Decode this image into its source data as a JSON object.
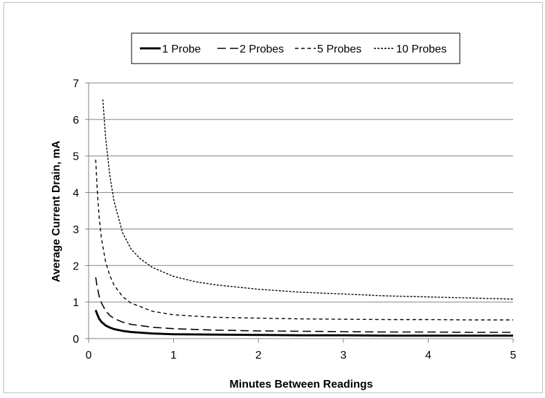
{
  "chart_data": {
    "type": "line",
    "title": "",
    "xlabel": "Minutes Between Readings",
    "ylabel": "Average Current Drain, mA",
    "xlim": [
      0,
      5
    ],
    "ylim": [
      0,
      7
    ],
    "xticks": [
      "0",
      "1",
      "2",
      "3",
      "4",
      "5"
    ],
    "yticks": [
      "0",
      "1",
      "2",
      "3",
      "4",
      "5",
      "6",
      "7"
    ],
    "grid": "horizontal",
    "legend_position": "top",
    "series": [
      {
        "name": "1 Probe",
        "line_style": "solid",
        "x": [
          0.083,
          0.1,
          0.125,
          0.15,
          0.2,
          0.25,
          0.3,
          0.4,
          0.5,
          0.75,
          1,
          1.5,
          2,
          2.5,
          3,
          3.5,
          4,
          4.5,
          5
        ],
        "y": [
          0.78,
          0.67,
          0.54,
          0.46,
          0.36,
          0.3,
          0.26,
          0.21,
          0.18,
          0.14,
          0.12,
          0.11,
          0.1,
          0.09,
          0.09,
          0.08,
          0.08,
          0.08,
          0.08
        ]
      },
      {
        "name": "2 Probes",
        "line_style": "dashed",
        "x": [
          0.083,
          0.1,
          0.125,
          0.15,
          0.2,
          0.25,
          0.3,
          0.4,
          0.5,
          0.75,
          1,
          1.5,
          2,
          2.5,
          3,
          3.5,
          4,
          4.5,
          5
        ],
        "y": [
          1.68,
          1.42,
          1.15,
          0.98,
          0.76,
          0.63,
          0.55,
          0.45,
          0.39,
          0.31,
          0.27,
          0.23,
          0.21,
          0.2,
          0.19,
          0.18,
          0.18,
          0.17,
          0.17
        ]
      },
      {
        "name": "5 Probes",
        "line_style": "short-dash",
        "x": [
          0.083,
          0.1,
          0.125,
          0.15,
          0.2,
          0.25,
          0.3,
          0.4,
          0.5,
          0.75,
          1,
          1.5,
          2,
          2.5,
          3,
          3.5,
          4,
          4.5,
          5
        ],
        "y": [
          4.9,
          4.1,
          3.3,
          2.75,
          2.1,
          1.72,
          1.46,
          1.15,
          0.97,
          0.75,
          0.65,
          0.58,
          0.56,
          0.54,
          0.53,
          0.52,
          0.52,
          0.51,
          0.51
        ]
      },
      {
        "name": "10 Probes",
        "line_style": "dotted",
        "x": [
          0.167,
          0.2,
          0.25,
          0.3,
          0.4,
          0.5,
          0.6,
          0.75,
          1,
          1.25,
          1.5,
          2,
          2.5,
          3,
          3.5,
          4,
          4.5,
          5
        ],
        "y": [
          6.55,
          5.5,
          4.45,
          3.75,
          2.9,
          2.45,
          2.2,
          1.95,
          1.7,
          1.56,
          1.47,
          1.35,
          1.27,
          1.22,
          1.17,
          1.14,
          1.11,
          1.08
        ]
      }
    ],
    "colors": {
      "line": "#000000",
      "grid": "#808080",
      "axis": "#808080",
      "frame": "#bfbfbf"
    }
  }
}
